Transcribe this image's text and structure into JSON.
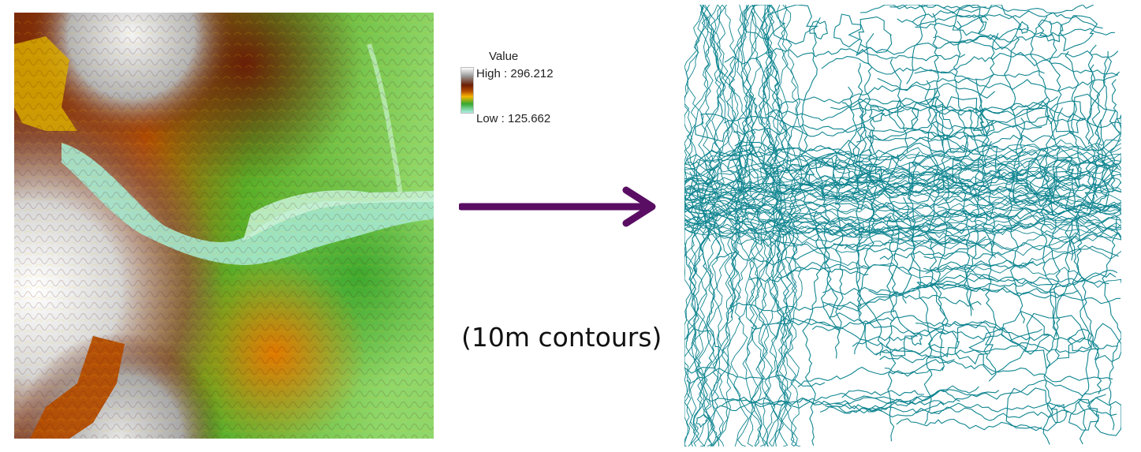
{
  "legend": {
    "title": "Value",
    "high_label": "High : 296.212",
    "low_label": "Low : 125.662",
    "high_value": 296.212,
    "low_value": 125.662,
    "color_ramp": [
      "#ffffff",
      "#9a9a9a",
      "#6a1e06",
      "#b44c00",
      "#f6b800",
      "#36a830",
      "#aef0e6"
    ]
  },
  "caption": "(10m contours)",
  "colors": {
    "contour_line": "#0f8590",
    "arrow": "#5a0e63"
  }
}
